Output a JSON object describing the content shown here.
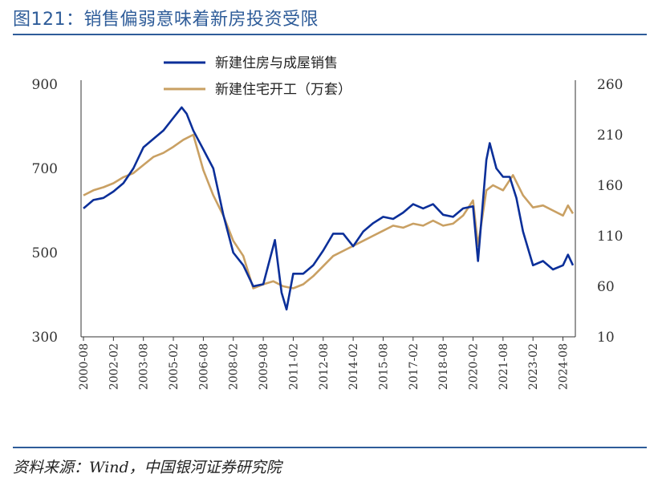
{
  "title": "图121：销售偏弱意味着新房投资受限",
  "source": "资料来源：Wind，中国银河证券研究院",
  "colors": {
    "navy": "#0b2f99",
    "gold": "#c9a063",
    "rule": "#2e5c99"
  },
  "chart_data": {
    "type": "line",
    "title": "",
    "left_axis": {
      "ylim": [
        300,
        900
      ],
      "ticks": [
        300,
        500,
        700,
        900
      ]
    },
    "right_axis": {
      "ylim": [
        10,
        260
      ],
      "ticks": [
        10,
        60,
        110,
        160,
        210,
        260
      ]
    },
    "x_tick_labels": [
      "2000-08",
      "2002-02",
      "2003-08",
      "2005-02",
      "2006-08",
      "2008-02",
      "2009-08",
      "2011-02",
      "2012-08",
      "2014-02",
      "2015-08",
      "2017-02",
      "2018-08",
      "2020-02",
      "2021-08",
      "2023-02",
      "2024-08"
    ],
    "x_range": [
      "2000-08",
      "2025-02"
    ],
    "grid": false,
    "legend_position": "top-center",
    "series": [
      {
        "name": "新建住房与成屋销售",
        "axis": "left",
        "color": "#0b2f99",
        "points": [
          [
            "2000-08",
            605
          ],
          [
            "2001-02",
            625
          ],
          [
            "2001-08",
            630
          ],
          [
            "2002-02",
            645
          ],
          [
            "2002-08",
            665
          ],
          [
            "2003-02",
            700
          ],
          [
            "2003-08",
            750
          ],
          [
            "2004-02",
            770
          ],
          [
            "2004-08",
            790
          ],
          [
            "2005-02",
            820
          ],
          [
            "2005-07",
            845
          ],
          [
            "2005-10",
            830
          ],
          [
            "2006-02",
            790
          ],
          [
            "2006-08",
            745
          ],
          [
            "2007-02",
            700
          ],
          [
            "2007-08",
            590
          ],
          [
            "2008-02",
            500
          ],
          [
            "2008-08",
            470
          ],
          [
            "2009-02",
            420
          ],
          [
            "2009-08",
            425
          ],
          [
            "2009-11",
            470
          ],
          [
            "2010-03",
            530
          ],
          [
            "2010-07",
            405
          ],
          [
            "2010-10",
            365
          ],
          [
            "2011-02",
            450
          ],
          [
            "2011-08",
            450
          ],
          [
            "2012-02",
            470
          ],
          [
            "2012-08",
            505
          ],
          [
            "2013-02",
            545
          ],
          [
            "2013-08",
            545
          ],
          [
            "2014-02",
            515
          ],
          [
            "2014-08",
            550
          ],
          [
            "2015-02",
            570
          ],
          [
            "2015-08",
            585
          ],
          [
            "2016-02",
            580
          ],
          [
            "2016-08",
            595
          ],
          [
            "2017-02",
            615
          ],
          [
            "2017-08",
            605
          ],
          [
            "2018-02",
            615
          ],
          [
            "2018-08",
            590
          ],
          [
            "2019-02",
            585
          ],
          [
            "2019-08",
            605
          ],
          [
            "2020-02",
            610
          ],
          [
            "2020-05",
            480
          ],
          [
            "2020-10",
            720
          ],
          [
            "2020-12",
            760
          ],
          [
            "2021-04",
            700
          ],
          [
            "2021-08",
            680
          ],
          [
            "2021-12",
            680
          ],
          [
            "2022-04",
            630
          ],
          [
            "2022-08",
            550
          ],
          [
            "2023-02",
            470
          ],
          [
            "2023-08",
            480
          ],
          [
            "2024-02",
            460
          ],
          [
            "2024-08",
            470
          ],
          [
            "2024-11",
            495
          ],
          [
            "2025-02",
            470
          ]
        ]
      },
      {
        "name": "新建住宅开工（万套）",
        "axis": "right",
        "color": "#c9a063",
        "points": [
          [
            "2000-08",
            150
          ],
          [
            "2001-02",
            155
          ],
          [
            "2001-08",
            158
          ],
          [
            "2002-02",
            162
          ],
          [
            "2002-08",
            168
          ],
          [
            "2003-02",
            172
          ],
          [
            "2003-08",
            180
          ],
          [
            "2004-02",
            188
          ],
          [
            "2004-08",
            192
          ],
          [
            "2005-02",
            198
          ],
          [
            "2005-08",
            205
          ],
          [
            "2006-02",
            210
          ],
          [
            "2006-08",
            175
          ],
          [
            "2007-02",
            150
          ],
          [
            "2007-08",
            130
          ],
          [
            "2008-02",
            105
          ],
          [
            "2008-08",
            90
          ],
          [
            "2009-02",
            58
          ],
          [
            "2009-08",
            62
          ],
          [
            "2010-02",
            65
          ],
          [
            "2010-08",
            60
          ],
          [
            "2011-02",
            58
          ],
          [
            "2011-08",
            62
          ],
          [
            "2012-02",
            70
          ],
          [
            "2012-08",
            80
          ],
          [
            "2013-02",
            90
          ],
          [
            "2013-08",
            95
          ],
          [
            "2014-02",
            100
          ],
          [
            "2014-08",
            105
          ],
          [
            "2015-02",
            110
          ],
          [
            "2015-08",
            115
          ],
          [
            "2016-02",
            120
          ],
          [
            "2016-08",
            118
          ],
          [
            "2017-02",
            122
          ],
          [
            "2017-08",
            120
          ],
          [
            "2018-02",
            125
          ],
          [
            "2018-08",
            120
          ],
          [
            "2019-02",
            122
          ],
          [
            "2019-08",
            130
          ],
          [
            "2020-02",
            145
          ],
          [
            "2020-05",
            100
          ],
          [
            "2020-10",
            155
          ],
          [
            "2021-02",
            160
          ],
          [
            "2021-08",
            155
          ],
          [
            "2022-02",
            170
          ],
          [
            "2022-08",
            150
          ],
          [
            "2023-02",
            138
          ],
          [
            "2023-08",
            140
          ],
          [
            "2024-02",
            135
          ],
          [
            "2024-08",
            130
          ],
          [
            "2024-11",
            140
          ],
          [
            "2025-02",
            132
          ]
        ]
      }
    ]
  }
}
